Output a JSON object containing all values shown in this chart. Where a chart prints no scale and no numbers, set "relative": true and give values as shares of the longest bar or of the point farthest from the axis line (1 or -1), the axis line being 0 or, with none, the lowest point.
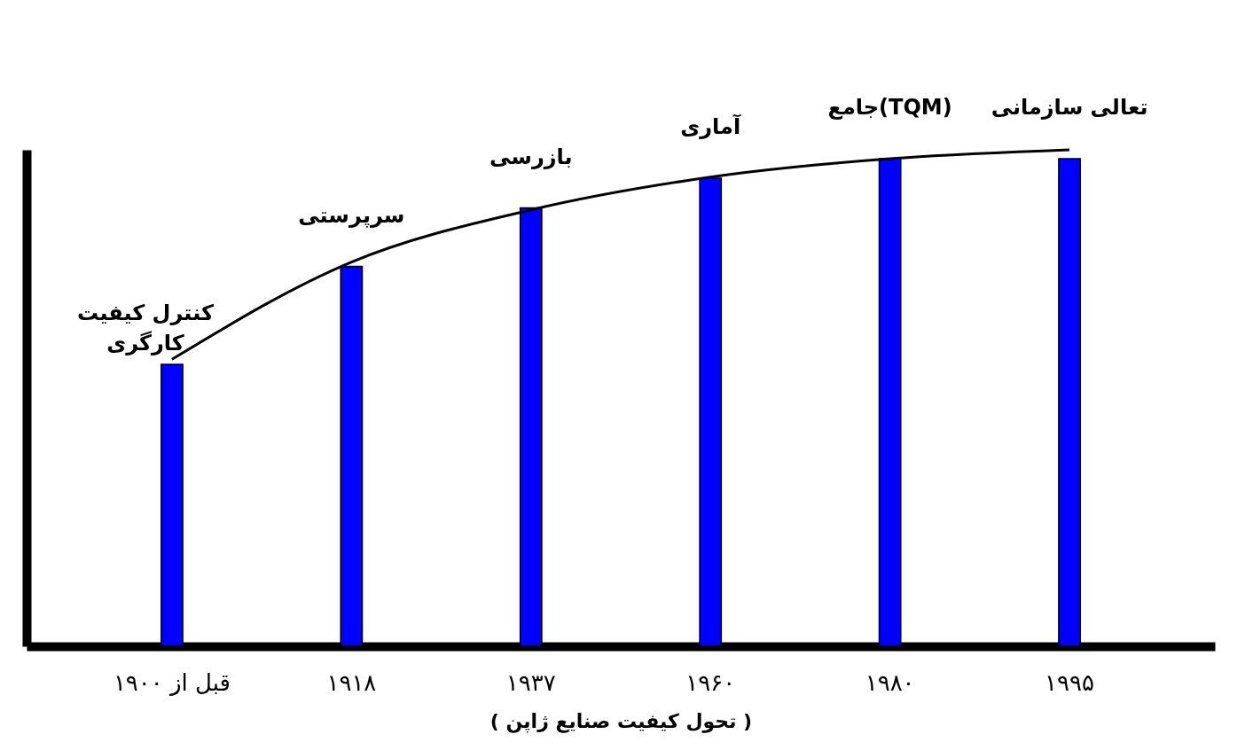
{
  "chart_data": {
    "type": "bar",
    "relative": true,
    "xlabel": "( تحول کیفیت صنایع ژاپن )",
    "categories": [
      "قبل از ۱۹۰۰",
      "۱۹۱۸",
      "۱۹۳۷",
      "۱۹۶۰",
      "۱۹۸۰",
      "۱۹۹۵"
    ],
    "series": [
      {
        "color": "#0000ff",
        "values": [
          0.568,
          0.765,
          0.883,
          0.943,
          0.982,
          0.982
        ]
      },
      {
        "type": "line",
        "color": "#000000",
        "values": [
          0.578,
          0.774,
          0.879,
          0.945,
          0.982,
          1
        ]
      }
    ],
    "annotations": [
      {
        "text": "کنترل کیفیت کارگری",
        "x": "قبل از ۱۹۰۰",
        "y": 0.568
      },
      {
        "text": "سرپرستی",
        "x": "۱۹۱۸",
        "y": 0.765
      },
      {
        "text": "بازرسی",
        "x": "۱۹۳۷",
        "y": 0.883
      },
      {
        "text": "آماری",
        "x": "۱۹۶۰",
        "y": 0.943
      },
      {
        "text": "جامع(TQM)",
        "x": "۱۹۸۰",
        "y": 0.982
      },
      {
        "text": "تعالی سازمانی",
        "x": "۱۹۹۵",
        "y": 0.982
      }
    ],
    "marker": "none"
  }
}
